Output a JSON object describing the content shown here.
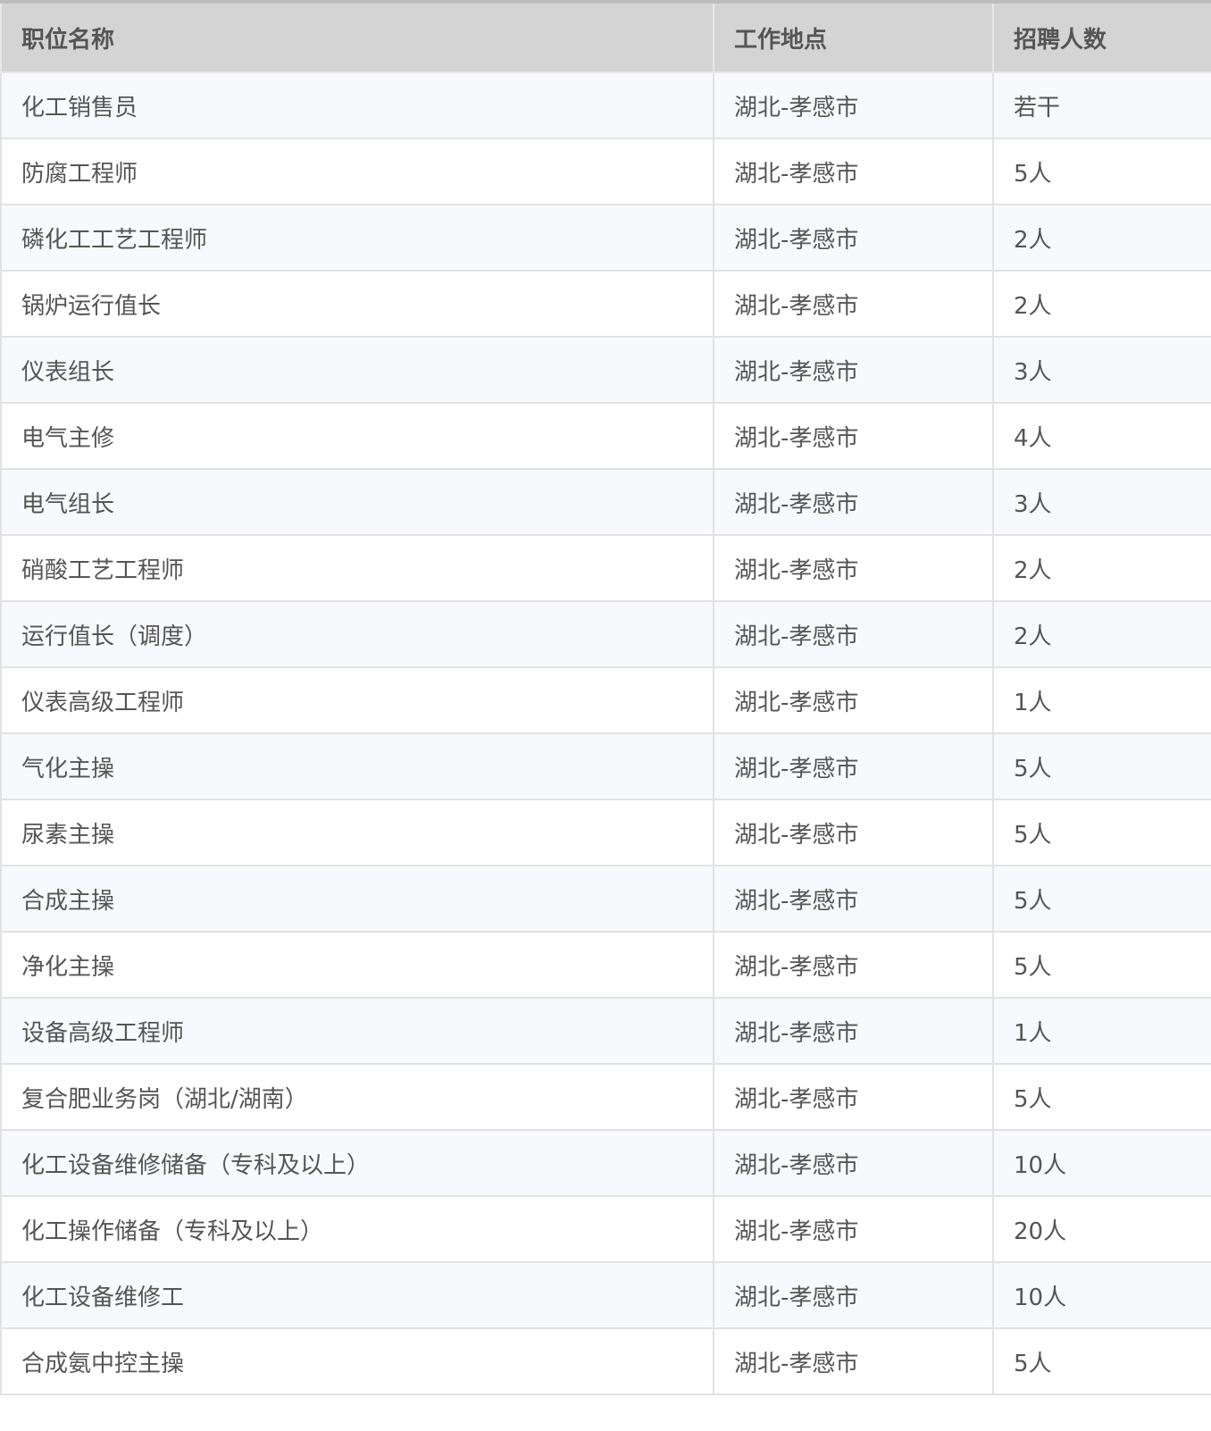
{
  "table": {
    "headers": [
      "职位名称",
      "工作地点",
      "招聘人数"
    ],
    "rows": [
      [
        "化工销售员",
        "湖北-孝感市",
        "若干"
      ],
      [
        "防腐工程师",
        "湖北-孝感市",
        "5人"
      ],
      [
        "磷化工工艺工程师",
        "湖北-孝感市",
        "2人"
      ],
      [
        "锅炉运行值长",
        "湖北-孝感市",
        "2人"
      ],
      [
        "仪表组长",
        "湖北-孝感市",
        "3人"
      ],
      [
        "电气主修",
        "湖北-孝感市",
        "4人"
      ],
      [
        "电气组长",
        "湖北-孝感市",
        "3人"
      ],
      [
        "硝酸工艺工程师",
        "湖北-孝感市",
        "2人"
      ],
      [
        "运行值长（调度）",
        "湖北-孝感市",
        "2人"
      ],
      [
        "仪表高级工程师",
        "湖北-孝感市",
        "1人"
      ],
      [
        "气化主操",
        "湖北-孝感市",
        "5人"
      ],
      [
        "尿素主操",
        "湖北-孝感市",
        "5人"
      ],
      [
        "合成主操",
        "湖北-孝感市",
        "5人"
      ],
      [
        "净化主操",
        "湖北-孝感市",
        "5人"
      ],
      [
        "设备高级工程师",
        "湖北-孝感市",
        "1人"
      ],
      [
        "复合肥业务岗（湖北/湖南）",
        "湖北-孝感市",
        "5人"
      ],
      [
        "化工设备维修储备（专科及以上）",
        "湖北-孝感市",
        "10人"
      ],
      [
        "化工操作储备（专科及以上）",
        "湖北-孝感市",
        "20人"
      ],
      [
        "化工设备维修工",
        "湖北-孝感市",
        "10人"
      ],
      [
        "合成氨中控主操",
        "湖北-孝感市",
        "5人"
      ]
    ]
  }
}
